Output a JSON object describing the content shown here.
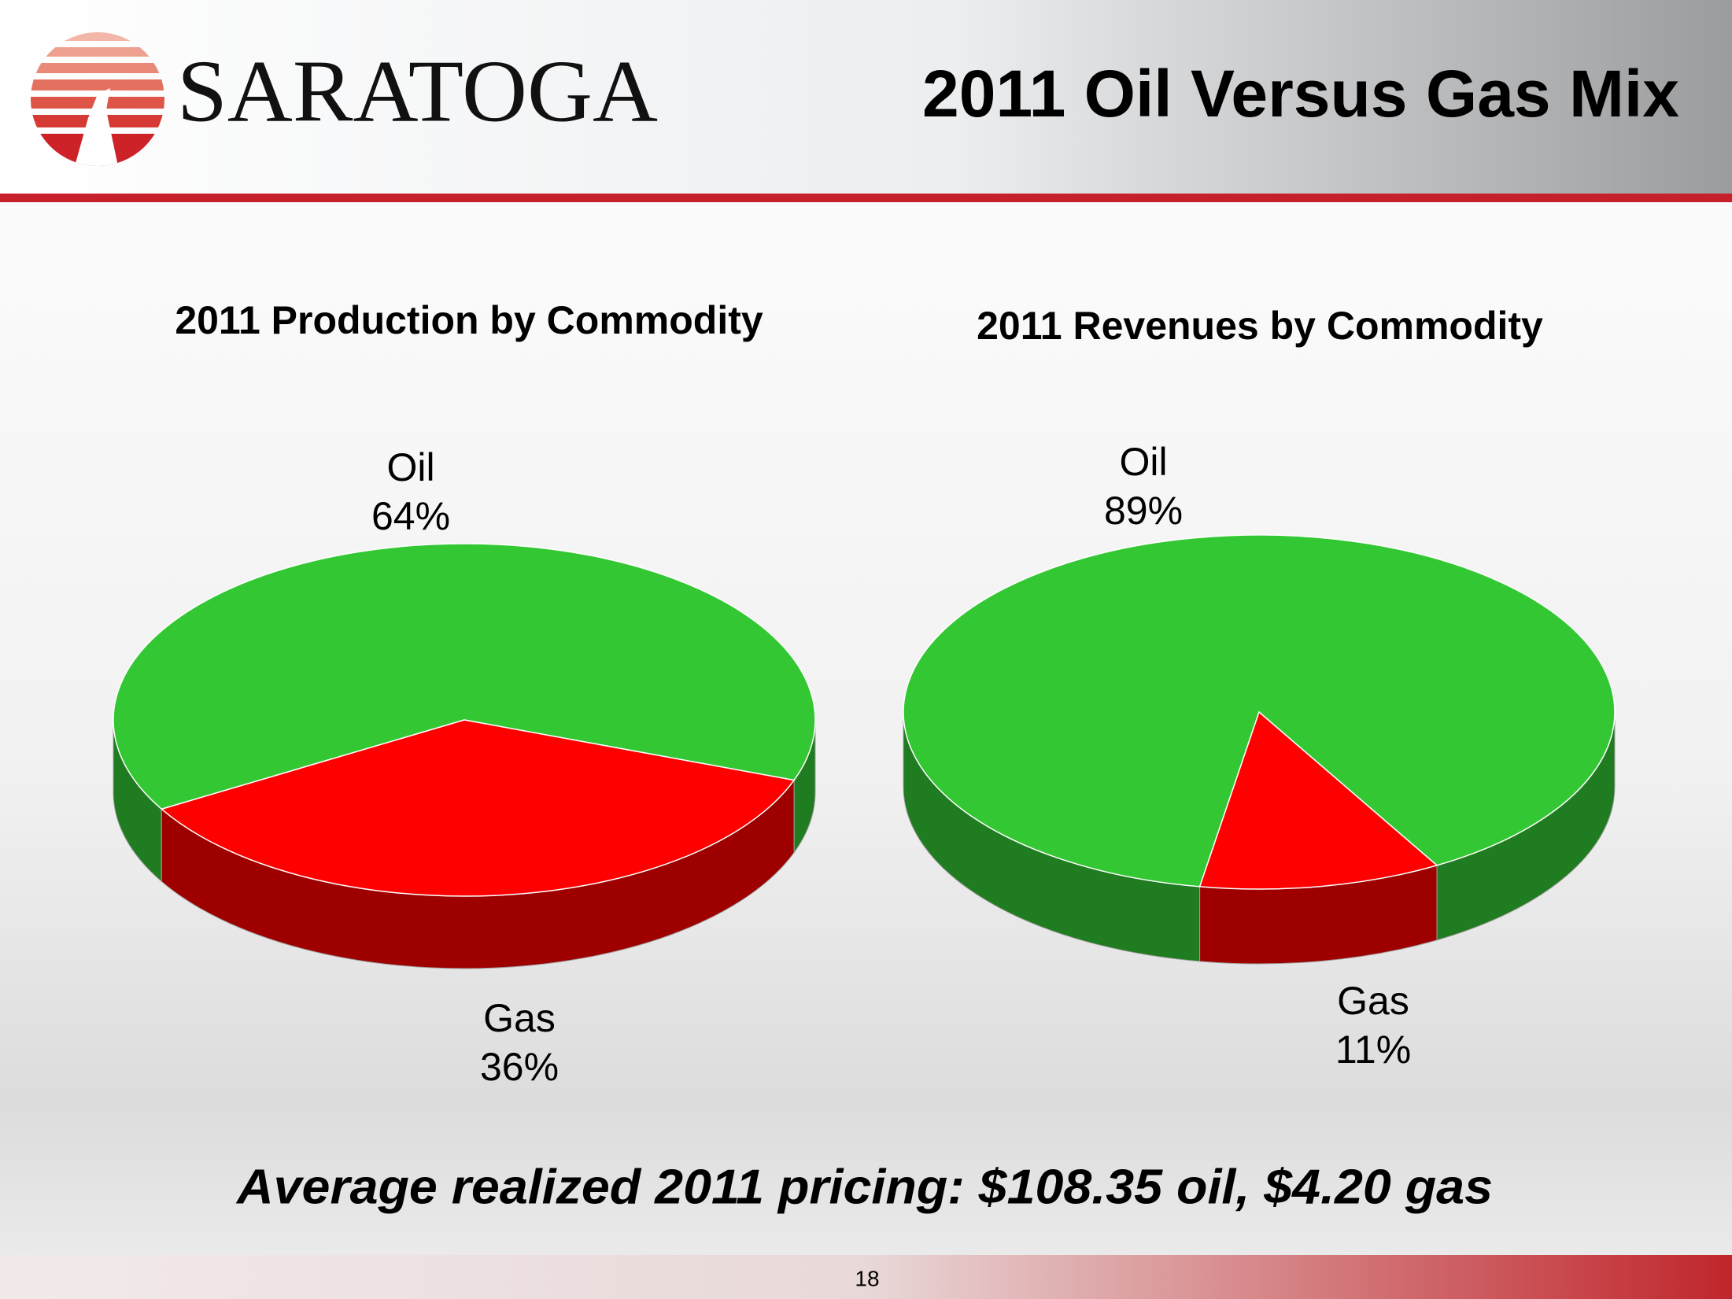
{
  "header": {
    "logo": "SARATOGA",
    "title": "2011 Oil Versus Gas Mix"
  },
  "chart_data": [
    {
      "type": "pie",
      "title": "2011 Production by Commodity",
      "categories": [
        "Oil",
        "Gas"
      ],
      "values": [
        64,
        36
      ],
      "value_labels": [
        "64%",
        "36%"
      ],
      "colors": [
        "#33c833",
        "#ff0000"
      ]
    },
    {
      "type": "pie",
      "title": "2011 Revenues by Commodity",
      "categories": [
        "Oil",
        "Gas"
      ],
      "values": [
        89,
        11
      ],
      "value_labels": [
        "89%",
        "11%"
      ],
      "colors": [
        "#33c833",
        "#ff0000"
      ]
    }
  ],
  "footer": {
    "note": "Average realized 2011 pricing: $108.35 oil, $4.20 gas",
    "page_number": "18"
  }
}
